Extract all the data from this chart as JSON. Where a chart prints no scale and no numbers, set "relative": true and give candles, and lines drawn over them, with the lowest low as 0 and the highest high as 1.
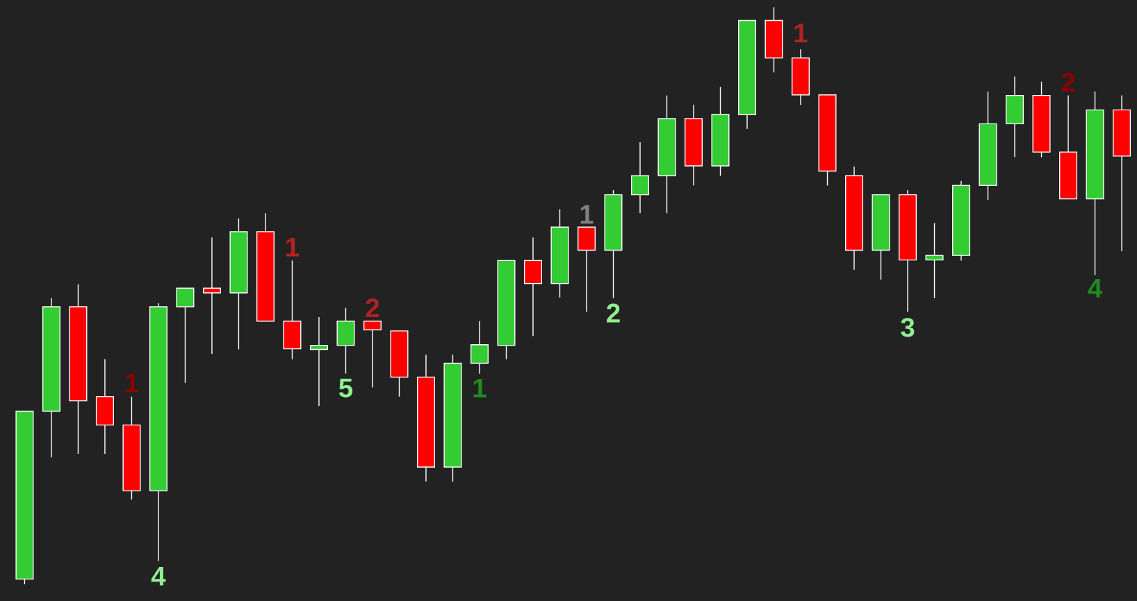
{
  "chart_data": {
    "type": "candlestick",
    "relative": true,
    "categories": [
      null,
      null,
      null,
      null,
      null,
      null,
      null,
      null,
      null,
      null,
      null,
      null,
      null,
      null,
      null,
      null,
      null,
      null,
      null,
      null,
      null,
      null,
      null,
      null,
      null,
      null,
      null,
      null,
      null,
      null,
      null,
      null,
      null,
      null,
      null,
      null,
      null,
      null,
      null,
      null,
      null,
      null
    ],
    "ohlc": [
      [
        0.009,
        0.3,
        0,
        0.3
      ],
      [
        0.3,
        0.496,
        0.22,
        0.481
      ],
      [
        0.481,
        0.52,
        0.226,
        0.318
      ],
      [
        0.325,
        0.39,
        0.226,
        0.276
      ],
      [
        0.276,
        0.325,
        0.147,
        0.162
      ],
      [
        0.162,
        0.487,
        0.04,
        0.481
      ],
      [
        0.481,
        0.513,
        0.349,
        0.513
      ],
      [
        0.513,
        0.601,
        0.399,
        0.505
      ],
      [
        0.505,
        0.634,
        0.407,
        0.611
      ],
      [
        0.611,
        0.643,
        0.456,
        0.456
      ],
      [
        0.456,
        0.561,
        0.39,
        0.408
      ],
      [
        0.407,
        0.463,
        0.309,
        0.414
      ],
      [
        0.414,
        0.479,
        0.365,
        0.456
      ],
      [
        0.456,
        0.456,
        0.341,
        0.441
      ],
      [
        0.439,
        0.439,
        0.325,
        0.359
      ],
      [
        0.359,
        0.398,
        0.178,
        0.203
      ],
      [
        0.203,
        0.398,
        0.178,
        0.383
      ],
      [
        0.383,
        0.456,
        0.365,
        0.415
      ],
      [
        0.414,
        0.561,
        0.39,
        0.561
      ],
      [
        0.561,
        0.601,
        0.43,
        0.521
      ],
      [
        0.521,
        0.65,
        0.497,
        0.619
      ],
      [
        0.619,
        0.619,
        0.472,
        0.579
      ],
      [
        0.579,
        0.683,
        0.496,
        0.675
      ],
      [
        0.675,
        0.766,
        0.643,
        0.708
      ],
      [
        0.708,
        0.847,
        0.643,
        0.807
      ],
      [
        0.807,
        0.831,
        0.691,
        0.725
      ],
      [
        0.725,
        0.862,
        0.708,
        0.814
      ],
      [
        0.814,
        0.977,
        0.789,
        0.977
      ],
      [
        0.977,
        1,
        0.887,
        0.912
      ],
      [
        0.912,
        0.927,
        0.831,
        0.848
      ],
      [
        0.848,
        0.848,
        0.691,
        0.716
      ],
      [
        0.708,
        0.724,
        0.545,
        0.579
      ],
      [
        0.579,
        0.675,
        0.528,
        0.675
      ],
      [
        0.675,
        0.683,
        0.472,
        0.562
      ],
      [
        0.562,
        0.626,
        0.496,
        0.57
      ],
      [
        0.57,
        0.699,
        0.561,
        0.691
      ],
      [
        0.691,
        0.854,
        0.666,
        0.798
      ],
      [
        0.798,
        0.88,
        0.74,
        0.847
      ],
      [
        0.847,
        0.871,
        0.74,
        0.749
      ],
      [
        0.749,
        0.847,
        0.668,
        0.668
      ],
      [
        0.668,
        0.854,
        0.536,
        0.822
      ],
      [
        0.822,
        0.847,
        0.577,
        0.742
      ]
    ],
    "colors": [
      "#33cc33",
      "#33cc33",
      "#ff0000",
      "#ff0000",
      "#ff0000",
      "#33cc33",
      "#33cc33",
      "#ff0000",
      "#33cc33",
      "#ff0000",
      "#ff0000",
      "#33cc33",
      "#33cc33",
      "#ff0000",
      "#ff0000",
      "#ff0000",
      "#33cc33",
      "#33cc33",
      "#33cc33",
      "#ff0000",
      "#33cc33",
      "#ff0000",
      "#33cc33",
      "#33cc33",
      "#33cc33",
      "#ff0000",
      "#33cc33",
      "#33cc33",
      "#ff0000",
      "#ff0000",
      "#ff0000",
      "#ff0000",
      "#33cc33",
      "#ff0000",
      "#33cc33",
      "#33cc33",
      "#33cc33",
      "#33cc33",
      "#ff0000",
      "#ff0000",
      "#33cc33",
      "#ff0000"
    ],
    "annotations": [
      "1",
      "4",
      "1",
      "5",
      "2",
      "1",
      "1",
      "2",
      "1",
      "3",
      "2",
      "4"
    ]
  }
}
